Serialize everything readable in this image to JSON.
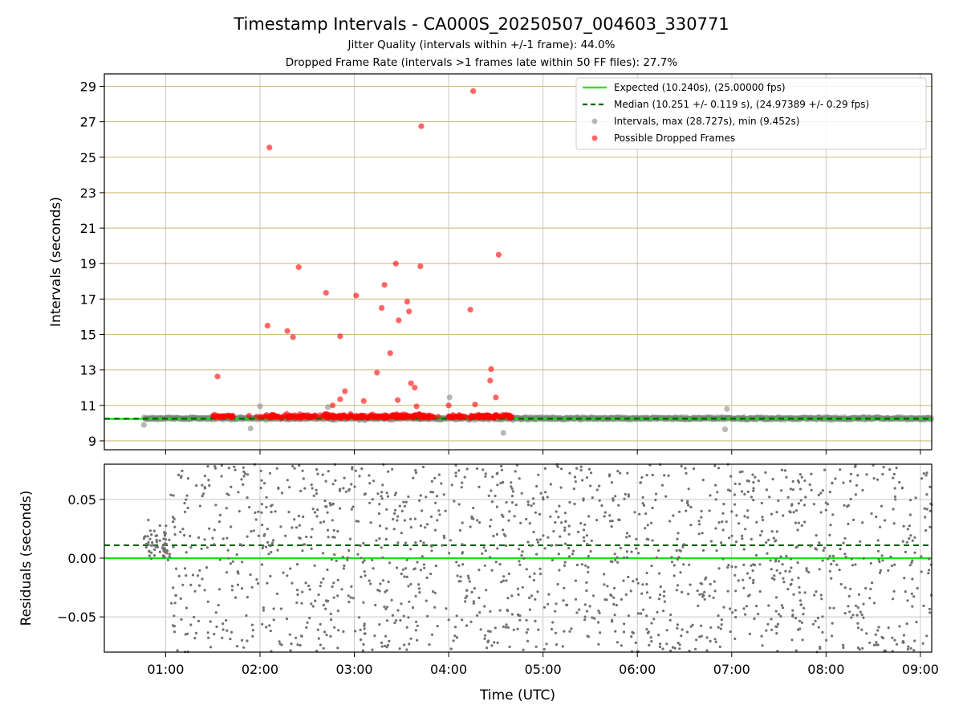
{
  "figure": {
    "title": "Timestamp Intervals - CA000S_20250507_004603_330771",
    "subtitle_1": "Jitter Quality (intervals within +/-1 frame): 44.0%",
    "subtitle_2": "Dropped Frame Rate (intervals >1 frames late within 50 FF files): 27.7%",
    "xlabel": "Time (UTC)"
  },
  "colors": {
    "expected": "#00ee00",
    "median": "#006400",
    "intervals": "#808080",
    "dropped": "#ff0000",
    "hgrid_top": "#c8b068"
  },
  "chart_data": [
    {
      "type": "scatter",
      "name": "intervals-panel",
      "ylabel": "Intervals (seconds)",
      "xlim": [
        0.35,
        9.12
      ],
      "ylim": [
        8.5,
        29.7
      ],
      "yticks": [
        9,
        11,
        13,
        15,
        17,
        19,
        21,
        23,
        25,
        27,
        29
      ],
      "xticks_hours": [
        1,
        2,
        3,
        4,
        5,
        6,
        7,
        8,
        9
      ],
      "xtick_labels": [
        "01:00",
        "02:00",
        "03:00",
        "04:00",
        "05:00",
        "06:00",
        "07:00",
        "08:00",
        "09:00"
      ],
      "grid": true,
      "legend_position": "top-right",
      "legend": [
        {
          "key": "expected",
          "label": "Expected (10.240s), (25.00000 fps)"
        },
        {
          "key": "median",
          "label": "Median (10.251 +/- 0.119 s), (24.97389 +/- 0.29 fps)"
        },
        {
          "key": "intervals",
          "label": "Intervals, max (28.727s), min (9.452s)"
        },
        {
          "key": "dropped",
          "label": "Possible Dropped Frames"
        }
      ],
      "expected": 10.24,
      "median": 10.251,
      "data_range_hours": [
        0.77,
        9.12
      ],
      "dropped_band_hours": [
        1.5,
        4.68
      ],
      "dropped_frames": [
        {
          "t": 1.55,
          "y": 12.63
        },
        {
          "t": 2.08,
          "y": 15.5
        },
        {
          "t": 2.1,
          "y": 25.55
        },
        {
          "t": 2.29,
          "y": 15.2
        },
        {
          "t": 2.35,
          "y": 14.85
        },
        {
          "t": 2.41,
          "y": 18.8
        },
        {
          "t": 2.7,
          "y": 17.35
        },
        {
          "t": 2.85,
          "y": 14.9
        },
        {
          "t": 2.9,
          "y": 11.8
        },
        {
          "t": 3.02,
          "y": 17.2
        },
        {
          "t": 3.24,
          "y": 12.85
        },
        {
          "t": 3.29,
          "y": 16.5
        },
        {
          "t": 3.32,
          "y": 17.8
        },
        {
          "t": 3.38,
          "y": 13.95
        },
        {
          "t": 3.44,
          "y": 19.0
        },
        {
          "t": 3.47,
          "y": 15.8
        },
        {
          "t": 3.56,
          "y": 16.85
        },
        {
          "t": 3.58,
          "y": 16.3
        },
        {
          "t": 3.6,
          "y": 12.25
        },
        {
          "t": 3.64,
          "y": 12.0
        },
        {
          "t": 3.7,
          "y": 18.85
        },
        {
          "t": 3.71,
          "y": 26.75
        },
        {
          "t": 4.23,
          "y": 16.4
        },
        {
          "t": 4.26,
          "y": 28.73
        },
        {
          "t": 4.44,
          "y": 12.4
        },
        {
          "t": 4.45,
          "y": 13.05
        },
        {
          "t": 4.53,
          "y": 19.5
        },
        {
          "t": 2.85,
          "y": 11.35
        },
        {
          "t": 3.1,
          "y": 11.25
        },
        {
          "t": 3.46,
          "y": 11.3
        },
        {
          "t": 4.0,
          "y": 11.0
        },
        {
          "t": 4.28,
          "y": 11.05
        },
        {
          "t": 4.5,
          "y": 11.45
        },
        {
          "t": 2.77,
          "y": 11.0
        },
        {
          "t": 3.66,
          "y": 10.95
        }
      ],
      "gray_outliers": [
        {
          "t": 2.0,
          "y": 10.95
        },
        {
          "t": 4.01,
          "y": 11.45
        },
        {
          "t": 4.58,
          "y": 9.45
        },
        {
          "t": 0.77,
          "y": 9.9
        },
        {
          "t": 6.95,
          "y": 10.8
        },
        {
          "t": 6.93,
          "y": 9.65
        },
        {
          "t": 1.9,
          "y": 9.7
        },
        {
          "t": 2.72,
          "y": 10.9
        }
      ]
    },
    {
      "type": "scatter",
      "name": "residuals-panel",
      "ylabel": "Residuals (seconds)",
      "xlim": [
        0.35,
        9.12
      ],
      "ylim": [
        -0.08,
        0.08
      ],
      "yticks": [
        -0.05,
        0.0,
        0.05
      ],
      "ytick_labels": [
        "−0.05",
        "0.00",
        "0.05"
      ],
      "grid": true,
      "expected": 0.0,
      "median": 0.011
    }
  ]
}
